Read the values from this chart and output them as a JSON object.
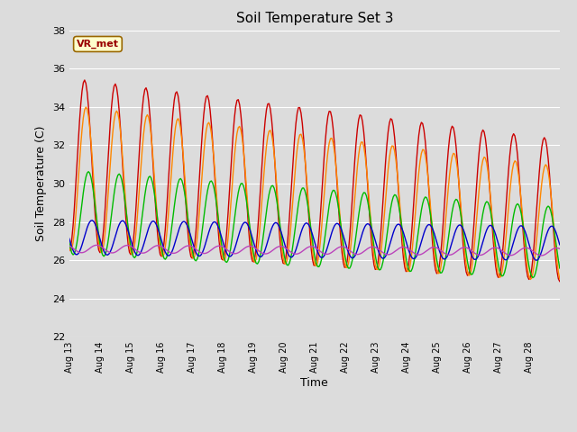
{
  "title": "Soil Temperature Set 3",
  "xlabel": "Time",
  "ylabel": "Soil Temperature (C)",
  "ylim": [
    22,
    38
  ],
  "yticks": [
    22,
    24,
    26,
    28,
    30,
    32,
    34,
    36,
    38
  ],
  "bg_color": "#dcdcdc",
  "annotation_text": "VR_met",
  "annotation_bg": "#ffffcc",
  "annotation_border": "#996600",
  "series": {
    "Tsoil -2cm": {
      "color": "#cc0000"
    },
    "Tsoil -4cm": {
      "color": "#ff8800"
    },
    "Tsoil -8cm": {
      "color": "#00bb00"
    },
    "Tsoil -16cm": {
      "color": "#0000cc"
    },
    "Tsoil -32cm": {
      "color": "#bb44bb"
    }
  },
  "n_days": 16,
  "pts_per_day": 24
}
